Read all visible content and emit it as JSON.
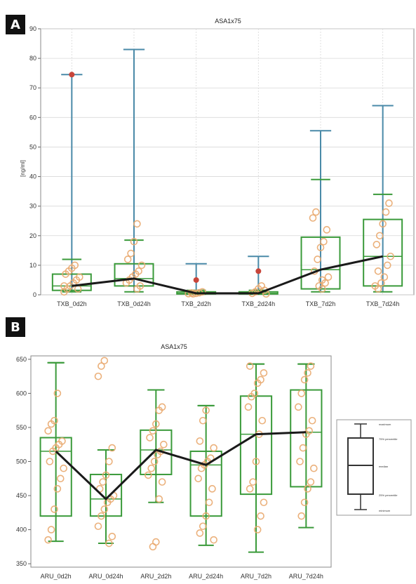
{
  "chart_data": [
    {
      "panel": "A",
      "type": "box",
      "title": "ASA1x75",
      "ylabel": "[ng/ml]",
      "ylim": [
        0,
        90
      ],
      "yticks": [
        0,
        10,
        20,
        30,
        40,
        50,
        60,
        70,
        80,
        90
      ],
      "grid": true,
      "categories": [
        "TXB_0d2h",
        "TXB_0d24h",
        "TXB_2d2h",
        "TXB_2d24h",
        "TXB_7d2h",
        "TXB_7d24h"
      ],
      "boxes": [
        {
          "min": 1,
          "q1": 1.5,
          "median": 3,
          "q3": 7,
          "max": 12,
          "whisker_top": 74.5,
          "outliers": [
            74.5
          ]
        },
        {
          "min": 1,
          "q1": 3,
          "median": 5.5,
          "q3": 10.5,
          "max": 18.5,
          "whisker_top": 83,
          "outliers": []
        },
        {
          "min": 0.2,
          "q1": 0.3,
          "median": 0.5,
          "q3": 1,
          "max": 1.5,
          "whisker_top": 10.5,
          "outliers": [
            5
          ]
        },
        {
          "min": 0.2,
          "q1": 0.3,
          "median": 0.5,
          "q3": 1,
          "max": 1.5,
          "whisker_top": 13,
          "outliers": [
            8
          ]
        },
        {
          "min": 1,
          "q1": 2,
          "median": 8.5,
          "q3": 19.5,
          "max": 39,
          "whisker_top": 55.5,
          "outliers": []
        },
        {
          "min": 1,
          "q1": 3,
          "median": 13,
          "q3": 25.5,
          "max": 34,
          "whisker_top": 64,
          "outliers": []
        }
      ],
      "median_line": [
        3,
        5.5,
        0.5,
        0.5,
        8.5,
        13
      ],
      "points": [
        [
          1,
          2,
          3,
          4,
          5,
          6,
          7,
          8,
          9,
          10,
          2,
          3
        ],
        [
          2,
          3,
          4,
          5,
          6,
          7,
          8,
          10,
          12,
          14,
          18,
          24
        ],
        [
          0.3,
          0.5,
          0.7,
          1,
          0.4,
          0.6
        ],
        [
          0.3,
          0.5,
          1,
          2,
          3,
          1.5
        ],
        [
          2,
          4,
          6,
          8,
          12,
          16,
          18,
          22,
          26,
          28,
          3,
          5
        ],
        [
          2,
          4,
          6,
          10,
          13,
          17,
          20,
          24,
          28,
          31,
          3,
          8
        ]
      ]
    },
    {
      "panel": "B",
      "type": "box",
      "title": "ASA1x75",
      "ylim": [
        345,
        655
      ],
      "yticks": [
        350,
        400,
        450,
        500,
        550,
        600,
        650
      ],
      "grid": false,
      "categories": [
        "ARU_0d2h",
        "ARU_0d24h",
        "ARU_2d2h",
        "ARU_2d24h",
        "ARU_7d2h",
        "ARU_7d24h"
      ],
      "boxes": [
        {
          "min": 383,
          "q1": 420,
          "median": 515,
          "q3": 535,
          "max": 645
        },
        {
          "min": 380,
          "q1": 420,
          "median": 445,
          "q3": 481,
          "max": 517
        },
        {
          "min": 440,
          "q1": 481,
          "median": 517,
          "q3": 546,
          "max": 605
        },
        {
          "min": 377,
          "q1": 420,
          "median": 495,
          "q3": 515,
          "max": 582
        },
        {
          "min": 367,
          "q1": 452,
          "median": 540,
          "q3": 596,
          "max": 643
        },
        {
          "min": 403,
          "q1": 463,
          "median": 543,
          "q3": 605,
          "max": 643
        }
      ],
      "median_line": [
        515,
        445,
        517,
        495,
        540,
        543
      ],
      "points": [
        [
          385,
          400,
          430,
          460,
          475,
          490,
          500,
          515,
          520,
          525,
          530,
          545,
          555,
          560,
          600
        ],
        [
          380,
          390,
          405,
          420,
          430,
          440,
          445,
          450,
          460,
          470,
          480,
          500,
          520,
          625,
          640,
          648
        ],
        [
          375,
          382,
          445,
          470,
          480,
          490,
          500,
          510,
          515,
          525,
          535,
          545,
          555,
          575,
          580
        ],
        [
          385,
          395,
          405,
          420,
          440,
          460,
          475,
          490,
          495,
          500,
          505,
          520,
          530,
          560,
          575
        ],
        [
          400,
          420,
          440,
          460,
          470,
          500,
          540,
          560,
          580,
          595,
          600,
          615,
          620,
          630,
          640
        ],
        [
          420,
          440,
          460,
          470,
          490,
          500,
          520,
          540,
          545,
          560,
          580,
          600,
          620,
          630,
          640
        ]
      ],
      "legend": [
        "maximum",
        "75% percentile",
        "median",
        "25% percentile",
        "minimum"
      ]
    }
  ],
  "colors": {
    "box": "#3a9a3a",
    "whisker_a": "#4a8aa8",
    "whisker_b": "#3a9a3a",
    "median_line": "#1a1a1a",
    "points": "#e9a86e",
    "outlier": "#c8453a",
    "grid": "#d8d8d8",
    "label_bg": "#111111"
  }
}
